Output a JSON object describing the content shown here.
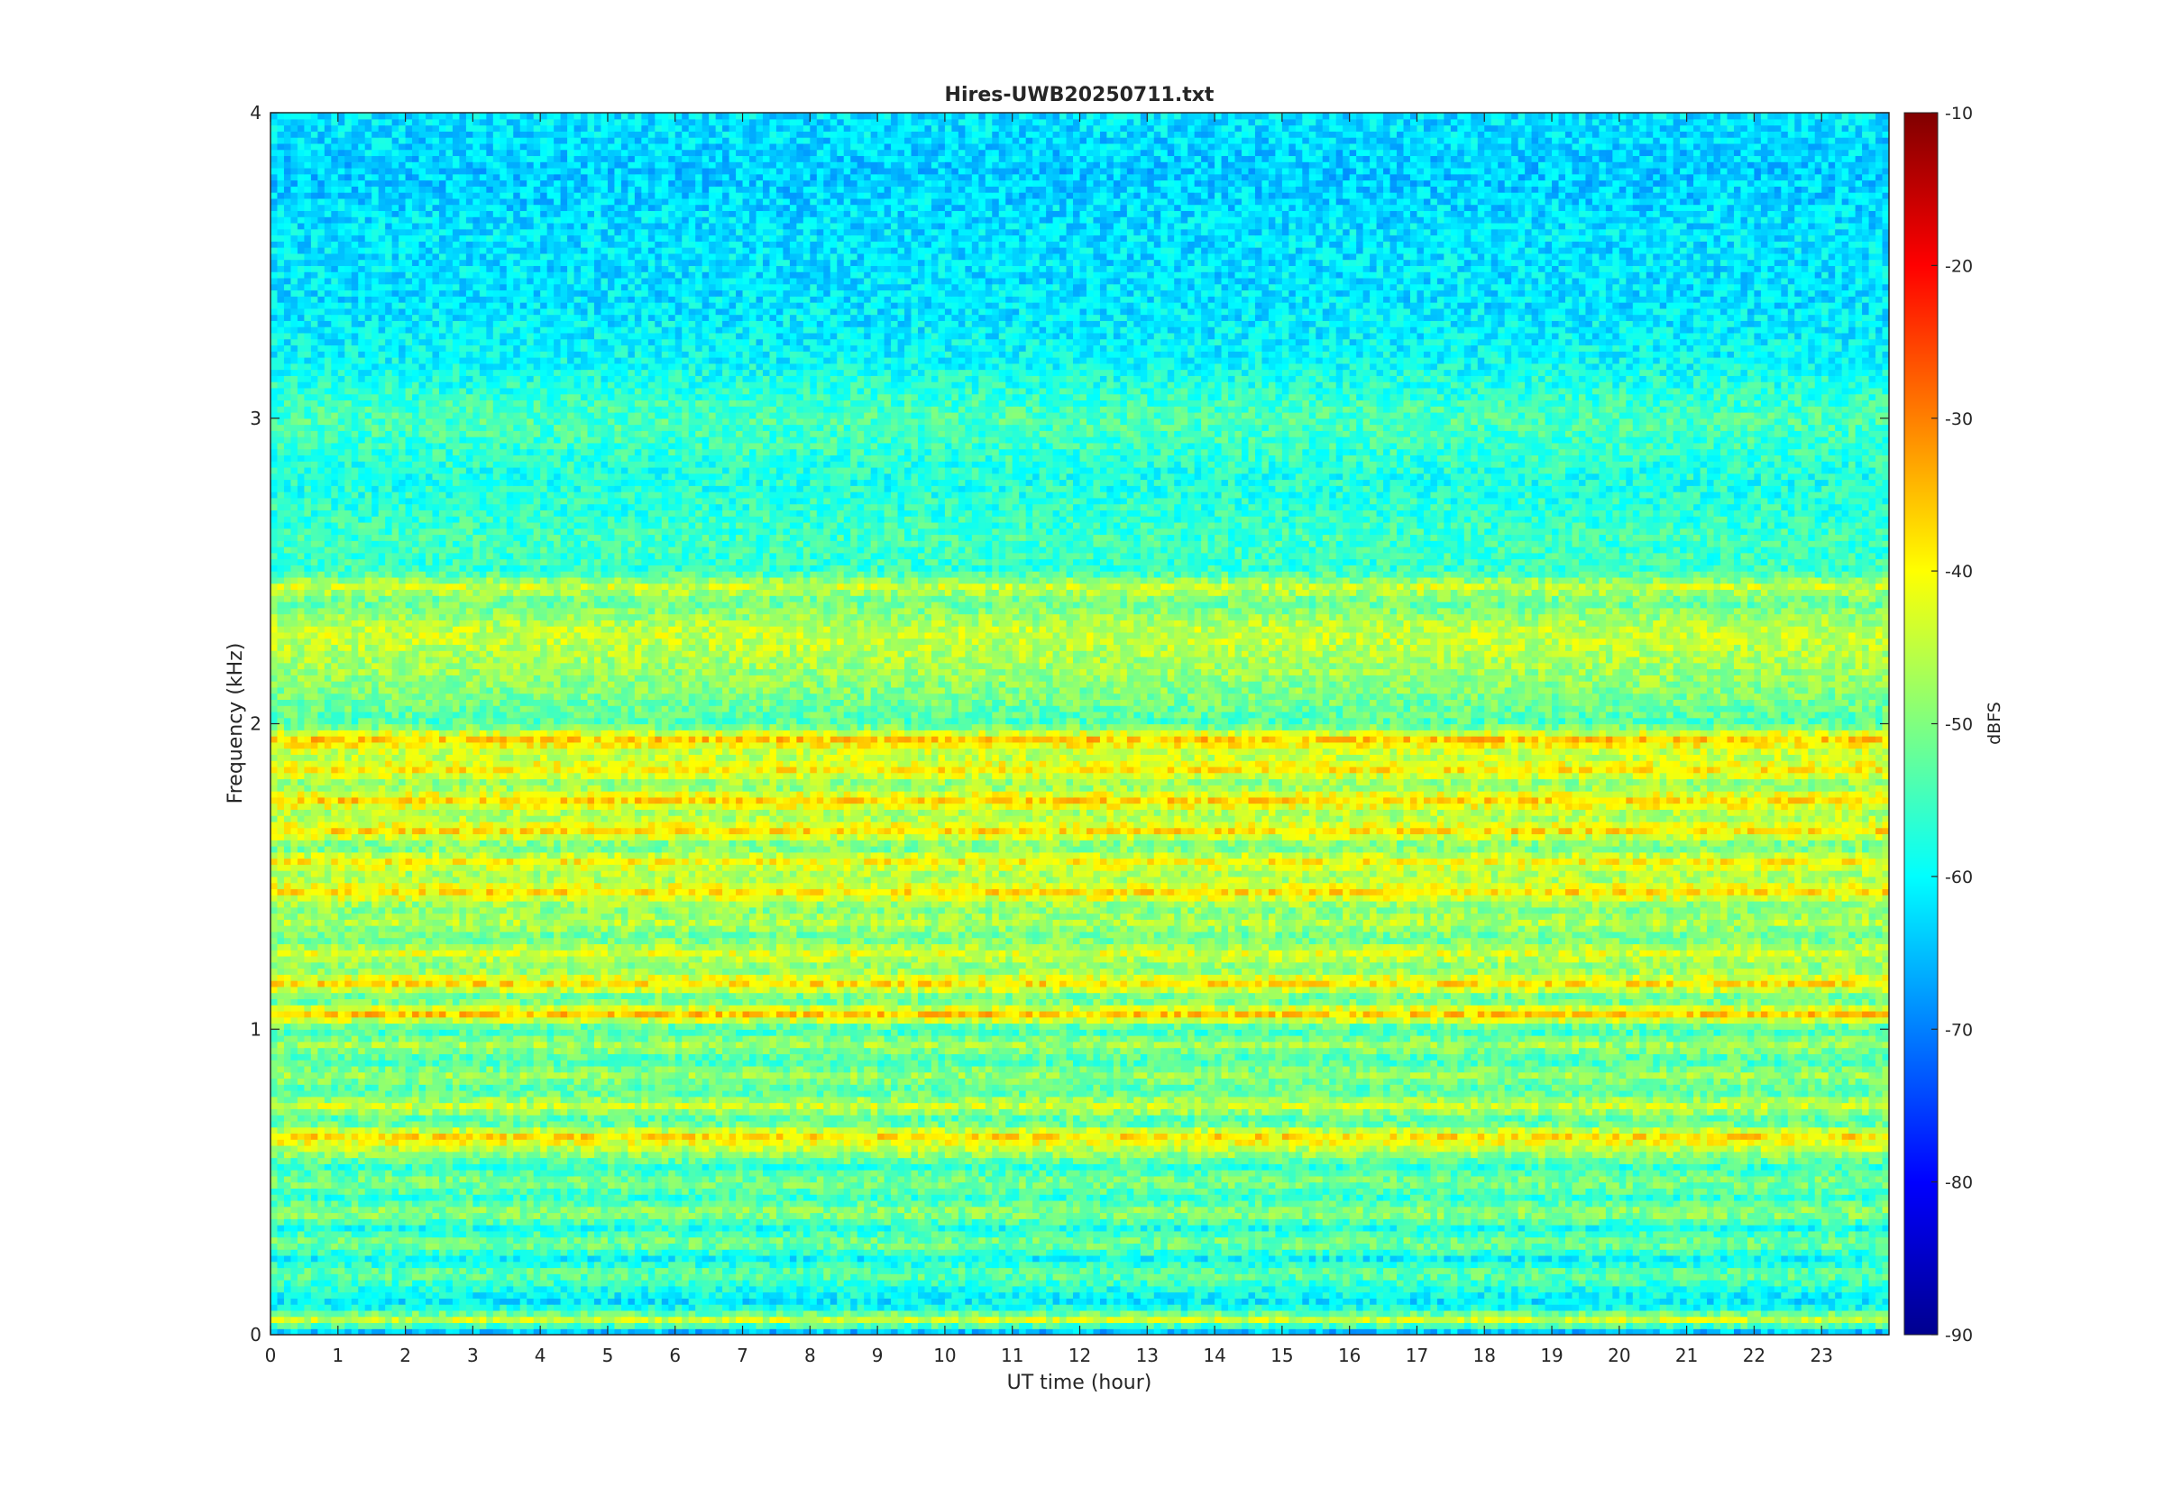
{
  "chart_data": {
    "type": "heatmap",
    "title": "Hires-UWB20250711.txt",
    "xlabel": "UT time (hour)",
    "ylabel": "Frequency (kHz)",
    "xlim": [
      0,
      24
    ],
    "ylim": [
      0,
      4
    ],
    "x_ticks": [
      0,
      1,
      2,
      3,
      4,
      5,
      6,
      7,
      8,
      9,
      10,
      11,
      12,
      13,
      14,
      15,
      16,
      17,
      18,
      19,
      20,
      21,
      22,
      23
    ],
    "y_ticks": [
      0,
      1,
      2,
      3,
      4
    ],
    "colorbar": {
      "label": "dBFS",
      "clim": [
        -90,
        -10
      ],
      "ticks": [
        -90,
        -80,
        -70,
        -60,
        -50,
        -40,
        -30,
        -20,
        -10
      ],
      "colormap": "jet"
    },
    "frequency_profile_khz": [
      0,
      0.05,
      0.1,
      0.15,
      0.2,
      0.25,
      0.3,
      0.35,
      0.4,
      0.45,
      0.5,
      0.55,
      0.6,
      0.65,
      0.7,
      0.75,
      0.8,
      0.85,
      0.9,
      0.95,
      1.0,
      1.05,
      1.1,
      1.15,
      1.2,
      1.25,
      1.3,
      1.35,
      1.4,
      1.45,
      1.5,
      1.55,
      1.6,
      1.65,
      1.7,
      1.75,
      1.8,
      1.85,
      1.9,
      1.95,
      2.0,
      2.1,
      2.2,
      2.3,
      2.4,
      2.45,
      2.5,
      2.6,
      2.8,
      3.0,
      3.2,
      3.4,
      3.6,
      3.8,
      4.0
    ],
    "level_profile_dbfs": [
      -70,
      -44,
      -62,
      -58,
      -52,
      -60,
      -50,
      -58,
      -48,
      -56,
      -50,
      -56,
      -47,
      -38,
      -55,
      -44,
      -54,
      -48,
      -55,
      -47,
      -56,
      -36,
      -54,
      -38,
      -50,
      -43,
      -52,
      -46,
      -50,
      -38,
      -48,
      -40,
      -52,
      -38,
      -48,
      -37,
      -50,
      -39,
      -46,
      -36,
      -54,
      -50,
      -47,
      -44,
      -52,
      -44,
      -56,
      -55,
      -58,
      -54,
      -60,
      -62,
      -62,
      -64,
      -62
    ]
  }
}
